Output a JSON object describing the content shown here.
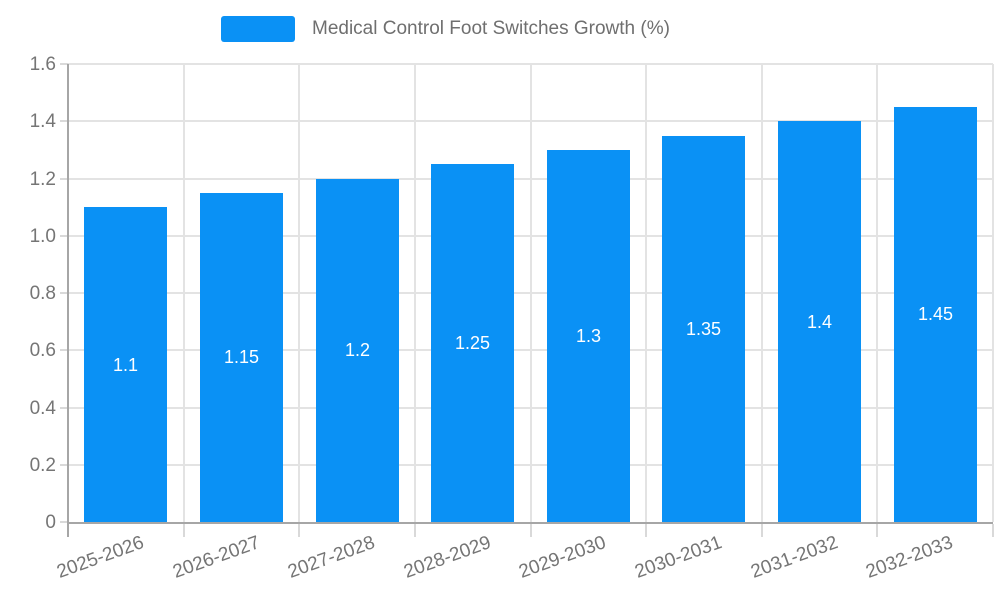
{
  "legend": {
    "label": "Medical Control Foot Switches Growth (%)",
    "swatch_color": "#0a91f5"
  },
  "chart_data": {
    "type": "bar",
    "title": "Medical Control Foot Switches Growth (%)",
    "categories": [
      "2025-2026",
      "2026-2027",
      "2027-2028",
      "2028-2029",
      "2029-2030",
      "2030-2031",
      "2031-2032",
      "2032-2033"
    ],
    "values": [
      1.1,
      1.15,
      1.2,
      1.25,
      1.3,
      1.35,
      1.4,
      1.45
    ],
    "value_labels": [
      "1.1",
      "1.15",
      "1.2",
      "1.25",
      "1.3",
      "1.35",
      "1.4",
      "1.45"
    ],
    "xlabel": "",
    "ylabel": "",
    "ylim": [
      0,
      1.6
    ],
    "yticks": [
      0,
      0.2,
      0.4,
      0.6,
      0.8,
      1.0,
      1.2,
      1.4,
      1.6
    ],
    "ytick_labels": [
      "0",
      "0.2",
      "0.4",
      "0.6",
      "0.8",
      "1.0",
      "1.2",
      "1.4",
      "1.6"
    ],
    "grid": true,
    "legend_position": "top",
    "bar_color": "#0a91f5",
    "value_label_color": "#ffffff"
  },
  "colors": {
    "bar": "#0a91f5",
    "grid": "#e3e3e3",
    "axis_line": "#a6a6a6",
    "tick": "#d9d9d9",
    "axis_label": "#757575",
    "title": "#6f6f6f",
    "value_label": "#ffffff",
    "background": "#ffffff"
  }
}
